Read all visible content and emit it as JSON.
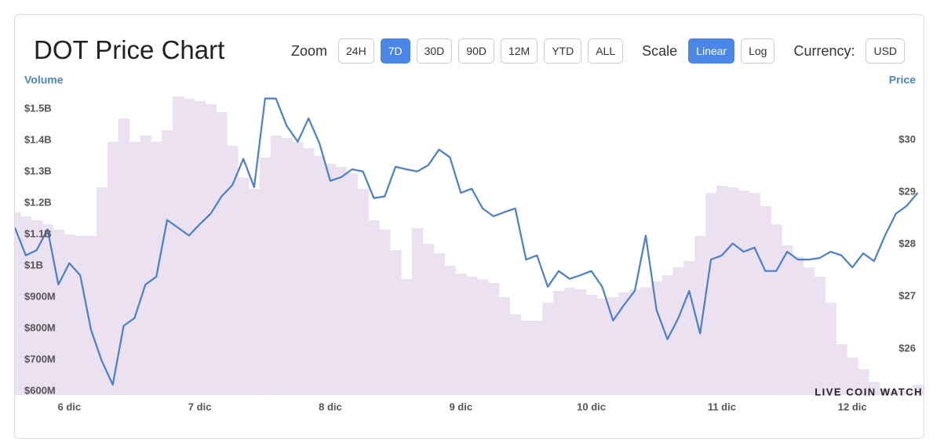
{
  "header": {
    "title": "DOT Price Chart",
    "zoom": {
      "label": "Zoom",
      "options": [
        "24H",
        "7D",
        "30D",
        "90D",
        "12M",
        "YTD",
        "ALL"
      ],
      "selected": 1
    },
    "scale": {
      "label": "Scale",
      "options": [
        "Linear",
        "Log"
      ],
      "selected": 0
    },
    "currency": {
      "label": "Currency:",
      "options": [
        "USD"
      ],
      "selected": -1
    }
  },
  "chart_data": {
    "type": "bar-line",
    "y_label": "Volume",
    "y2_label": "Price",
    "watermark": "LIVE COIN WATCH",
    "categories": [
      null,
      null,
      null,
      null,
      null,
      "6 dic",
      null,
      null,
      null,
      null,
      null,
      null,
      null,
      null,
      null,
      null,
      null,
      "7 dic",
      null,
      null,
      null,
      null,
      null,
      null,
      null,
      null,
      null,
      null,
      null,
      "8 dic",
      null,
      null,
      null,
      null,
      null,
      null,
      null,
      null,
      null,
      null,
      null,
      "9 dic",
      null,
      null,
      null,
      null,
      null,
      null,
      null,
      null,
      null,
      null,
      null,
      "10 dic",
      null,
      null,
      null,
      null,
      null,
      null,
      null,
      null,
      null,
      null,
      null,
      "11 dic",
      null,
      null,
      null,
      null,
      null,
      null,
      null,
      null,
      null,
      null,
      null,
      "12 dic",
      null,
      null,
      null,
      null,
      null,
      null
    ],
    "series": [
      {
        "name": "Volume",
        "type": "bar",
        "color": "#ece1f1",
        "values": [
          1170000000,
          1157500000,
          1145000000,
          1132500000,
          1115000000,
          1100000000,
          1095000000,
          1095000000,
          1250000000,
          1395000000,
          1470000000,
          1395000000,
          1415000000,
          1395000000,
          1432000000,
          1540000000,
          1532000000,
          1525000000,
          1515000000,
          1490000000,
          1382000000,
          1282000000,
          1245000000,
          1345000000,
          1415000000,
          1407000000,
          1395000000,
          1375000000,
          1350000000,
          1325000000,
          1315000000,
          1295000000,
          1245000000,
          1145000000,
          1115000000,
          1050000000,
          957000000,
          1120000000,
          1070000000,
          1040000000,
          1000000000,
          975000000,
          965000000,
          957000000,
          945000000,
          900000000,
          845000000,
          825000000,
          825000000,
          882000000,
          920000000,
          930000000,
          925000000,
          907000000,
          895000000,
          900000000,
          915000000,
          925000000,
          932000000,
          950000000,
          970000000,
          995000000,
          1015000000,
          1095000000,
          1232000000,
          1255000000,
          1250000000,
          1240000000,
          1232000000,
          1190000000,
          1132000000,
          1065000000,
          1030000000,
          995000000,
          965000000,
          882000000,
          750000000,
          707000000,
          670000000,
          630000000,
          607000000,
          602000000,
          600000000,
          620000000
        ]
      },
      {
        "name": "Price",
        "type": "line",
        "axis": "y2",
        "color": "#4a7fcc",
        "values": [
          28.32,
          27.79,
          27.89,
          28.29,
          27.23,
          27.64,
          27.41,
          26.36,
          25.76,
          25.31,
          26.44,
          26.59,
          27.23,
          27.38,
          28.47,
          28.32,
          28.17,
          28.39,
          28.59,
          28.92,
          29.14,
          29.64,
          29.1,
          30.8,
          30.8,
          30.27,
          29.97,
          30.42,
          29.94,
          29.22,
          29.29,
          29.44,
          29.4,
          28.89,
          28.92,
          29.49,
          29.44,
          29.4,
          29.52,
          29.82,
          29.67,
          28.99,
          29.07,
          28.69,
          28.54,
          28.62,
          28.69,
          27.71,
          27.79,
          27.19,
          27.49,
          27.34,
          27.41,
          27.49,
          27.19,
          26.54,
          26.84,
          27.11,
          28.17,
          26.74,
          26.18,
          26.59,
          27.11,
          26.29,
          27.71,
          27.79,
          28.02,
          27.86,
          27.94,
          27.49,
          27.49,
          27.86,
          27.71,
          27.71,
          27.74,
          27.86,
          27.79,
          27.56,
          27.83,
          27.68,
          28.17,
          28.59,
          28.74,
          28.99
        ]
      }
    ],
    "ylim": [
      587500000,
      1600000000
    ],
    "yticks": [
      {
        "value": 600000000,
        "label": "$600M"
      },
      {
        "value": 700000000,
        "label": "$700M"
      },
      {
        "value": 800000000,
        "label": "$800M"
      },
      {
        "value": 900000000,
        "label": "$900M"
      },
      {
        "value": 1000000000,
        "label": "$1B"
      },
      {
        "value": 1100000000,
        "label": "$1.1B"
      },
      {
        "value": 1200000000,
        "label": "$1.2B"
      },
      {
        "value": 1300000000,
        "label": "$1.3B"
      },
      {
        "value": 1400000000,
        "label": "$1.4B"
      },
      {
        "value": 1500000000,
        "label": "$1.5B"
      }
    ],
    "y2lim": [
      25.11,
      31.2
    ],
    "y2ticks": [
      {
        "value": 26,
        "label": "$26"
      },
      {
        "value": 27,
        "label": "$27"
      },
      {
        "value": 28,
        "label": "$28"
      },
      {
        "value": 29,
        "label": "$29"
      },
      {
        "value": 30,
        "label": "$30"
      }
    ],
    "grid": false
  }
}
